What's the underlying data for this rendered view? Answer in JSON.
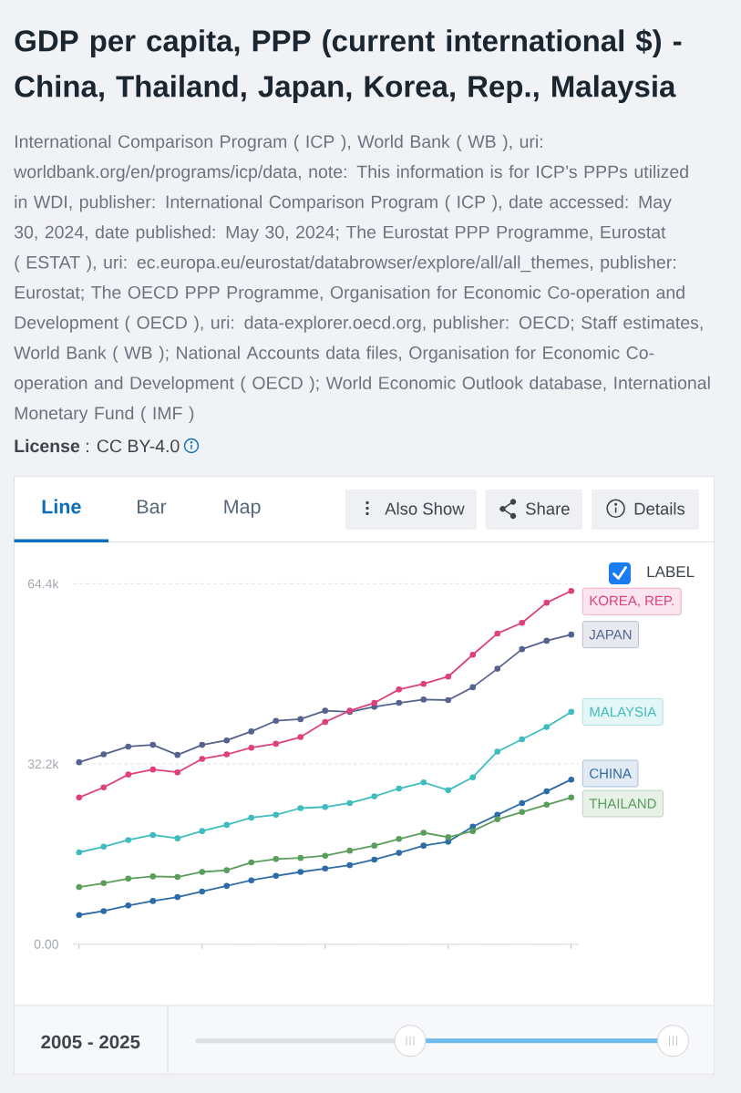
{
  "chart_data": {
    "type": "line",
    "title": "GDP per capita, PPP (current international $) - China, Thailand, Japan, Korea, Rep., Malaysia",
    "subtitle": "International Comparison Program ( ICP ), World Bank ( WB ), uri: worldbank.org/en/programs/icp/data, note: This information is for ICP’s PPPs utilized in WDI, publisher: International Comparison Program ( ICP ), date accessed: May 30, 2024, date published: May 30, 2024; The Eurostat PPP Programme, Eurostat ( ESTAT ), uri: ec.europa.eu/eurostat/databrowser/explore/all/all_themes, publisher: Eurostat; The OECD PPP Programme, Organisation for Economic Co-operation and Development ( OECD ), uri: data-explorer.oecd.org, publisher: OECD; Staff estimates, World Bank ( WB ); National Accounts data files, Organisation for Economic Co-operation and Development ( OECD ); World Economic Outlook database, International Monetary Fund ( IMF )",
    "categories": [
      null,
      null,
      null,
      null,
      null,
      null,
      null,
      null,
      null,
      null,
      null,
      null,
      null,
      null,
      null,
      null,
      null,
      null,
      null,
      null,
      null
    ],
    "series": [
      {
        "name": "CHINA",
        "color": "#2e6ca8",
        "values": [
          5200,
          5900,
          6900,
          7700,
          8400,
          9400,
          10400,
          11400,
          12200,
          12900,
          13500,
          14100,
          15100,
          16300,
          17600,
          18300,
          21000,
          23100,
          25200,
          27300,
          29400
        ]
      },
      {
        "name": "THAILAND",
        "color": "#5b9e5b",
        "values": [
          10200,
          10900,
          11700,
          12100,
          12000,
          12900,
          13200,
          14600,
          15200,
          15400,
          15800,
          16700,
          17600,
          18800,
          19900,
          19100,
          20200,
          22300,
          23600,
          24900,
          26200
        ]
      },
      {
        "name": "JAPAN",
        "color": "#56638f",
        "values": [
          32500,
          33900,
          35300,
          35600,
          33800,
          35600,
          36400,
          38000,
          39900,
          40200,
          41700,
          41500,
          42400,
          43100,
          43700,
          43600,
          45900,
          49200,
          52700,
          54200,
          55300
        ]
      },
      {
        "name": "KOREA, REP.",
        "color": "#de417d",
        "values": [
          26200,
          28000,
          30300,
          31200,
          30700,
          33100,
          33900,
          35100,
          35800,
          37000,
          39700,
          41700,
          43100,
          45500,
          46500,
          47800,
          51700,
          55500,
          57400,
          61000,
          63100
        ]
      },
      {
        "name": "MALAYSIA",
        "color": "#3fbcbf",
        "values": [
          16400,
          17400,
          18600,
          19500,
          18900,
          20200,
          21300,
          22600,
          23100,
          24300,
          24500,
          25200,
          26400,
          27800,
          28900,
          27500,
          29800,
          34400,
          36600,
          38800,
          41500
        ]
      }
    ],
    "ylim": [
      0,
      64400
    ],
    "yticks": [
      {
        "value": 0,
        "label": "0.00"
      },
      {
        "value": 32200,
        "label": "32.2k"
      },
      {
        "value": 64400,
        "label": "64.4k"
      }
    ],
    "grid": "y",
    "marker": "circle",
    "line_style": "solid",
    "tick_labels": "y",
    "annotations": [
      "**License** : CC BY-4.0",
      "Line",
      "Bar",
      "Map",
      "Also Show",
      "Share",
      "Details",
      "LABEL",
      "2005 - 2025"
    ]
  }
}
